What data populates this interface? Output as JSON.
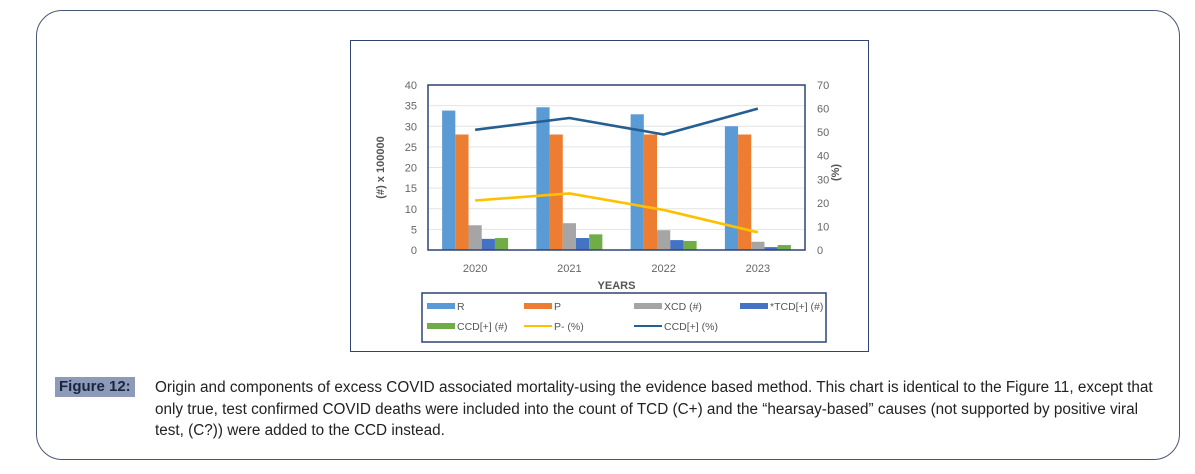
{
  "figure": {
    "label": "Figure 12:",
    "caption": "Origin and components of excess COVID associated mortality-using the evidence based method. This chart is identical to the Figure 11, except that only true, test confirmed COVID deaths were included into the count of TCD (C+) and the “hearsay-based” causes (not supported by positive viral test, (C?)) were added to the CCD instead."
  },
  "chart_data": {
    "type": "bar",
    "title": "",
    "xlabel": "YEARS",
    "ylabel": "(#)   x 100000",
    "y2label": "(%)",
    "categories": [
      "2020",
      "2021",
      "2022",
      "2023"
    ],
    "ylim": [
      0,
      40
    ],
    "y2lim": [
      0,
      70
    ],
    "yticks": [
      "0",
      "5",
      "10",
      "15",
      "20",
      "25",
      "30",
      "35",
      "40"
    ],
    "y2ticks": [
      "0",
      "10",
      "20",
      "30",
      "40",
      "50",
      "60",
      "70"
    ],
    "grid": true,
    "legend_position": "bottom",
    "series": [
      {
        "name": "R",
        "kind": "bar",
        "axis": "left",
        "color": "#5b9bd5",
        "values": [
          33.8,
          34.6,
          32.9,
          30.0
        ]
      },
      {
        "name": "P",
        "kind": "bar",
        "axis": "left",
        "color": "#ed7d31",
        "values": [
          28.0,
          28.0,
          28.0,
          28.0
        ]
      },
      {
        "name": "XCD (#)",
        "kind": "bar",
        "axis": "left",
        "color": "#a5a5a5",
        "values": [
          6.0,
          6.5,
          4.8,
          2.0
        ]
      },
      {
        "name": "*TCD[+] (#)",
        "kind": "bar",
        "axis": "left",
        "color": "#4472c4",
        "values": [
          2.7,
          2.9,
          2.4,
          0.7
        ]
      },
      {
        "name": "CCD[+] (#)",
        "kind": "bar",
        "axis": "left",
        "color": "#70ad47",
        "values": [
          2.9,
          3.8,
          2.2,
          1.2
        ]
      },
      {
        "name": "P- (%)",
        "kind": "line",
        "axis": "right",
        "color": "#ffc000",
        "values": [
          21,
          24,
          17,
          7.5
        ]
      },
      {
        "name": "CCD[+] (%)",
        "kind": "line",
        "axis": "right",
        "color": "#255e91",
        "values": [
          51,
          56,
          49,
          60
        ]
      }
    ]
  }
}
